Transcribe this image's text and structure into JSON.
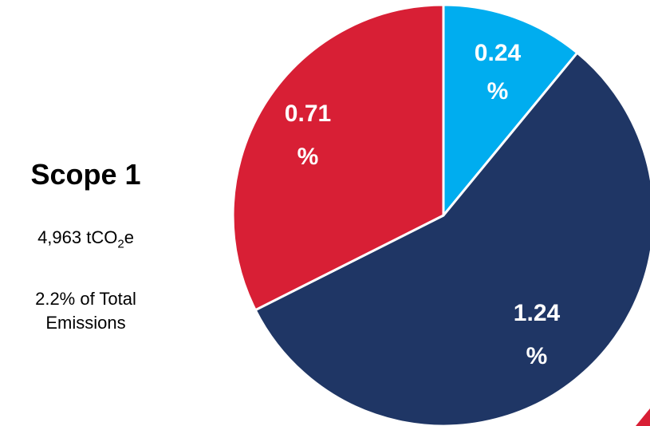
{
  "summary": {
    "title": "Scope 1",
    "emissions_value": "4,963 tCO",
    "emissions_sub": "2",
    "emissions_suffix": "e",
    "share_line1": "2.2% of Total",
    "share_line2": "Emissions"
  },
  "chart_data": {
    "type": "pie",
    "title": "",
    "start_angle_deg": 0,
    "slices": [
      {
        "label_line1": "0.24",
        "label_line2": "%",
        "value": 0.24,
        "color": "#00adef"
      },
      {
        "label_line1": "1.24",
        "label_line2": "%",
        "value": 1.24,
        "color": "#1f3665"
      },
      {
        "label_line1": "0.71",
        "label_line2": "%",
        "value": 0.71,
        "color": "#d81f35"
      }
    ]
  }
}
